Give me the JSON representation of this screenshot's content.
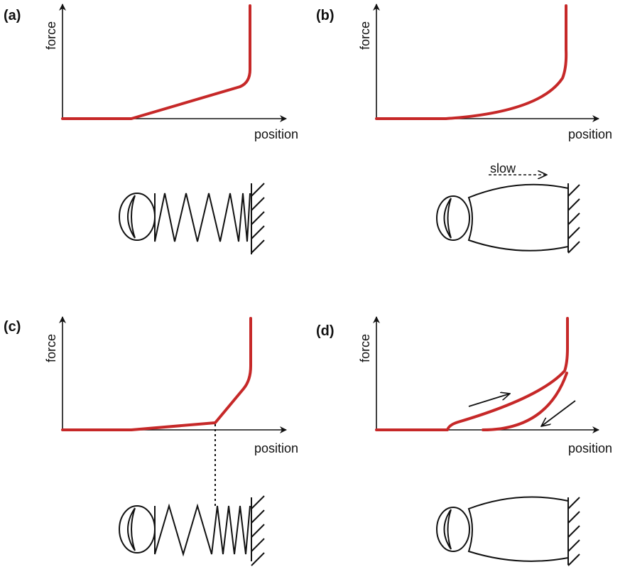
{
  "panels": [
    {
      "label": "(a)",
      "y_label": "force",
      "x_label": "position"
    },
    {
      "label": "(b)",
      "y_label": "force",
      "x_label": "position"
    },
    {
      "label": "(c)",
      "y_label": "force",
      "x_label": "position"
    },
    {
      "label": "(d)",
      "y_label": "force",
      "x_label": "position"
    }
  ],
  "annotation": "slow"
}
